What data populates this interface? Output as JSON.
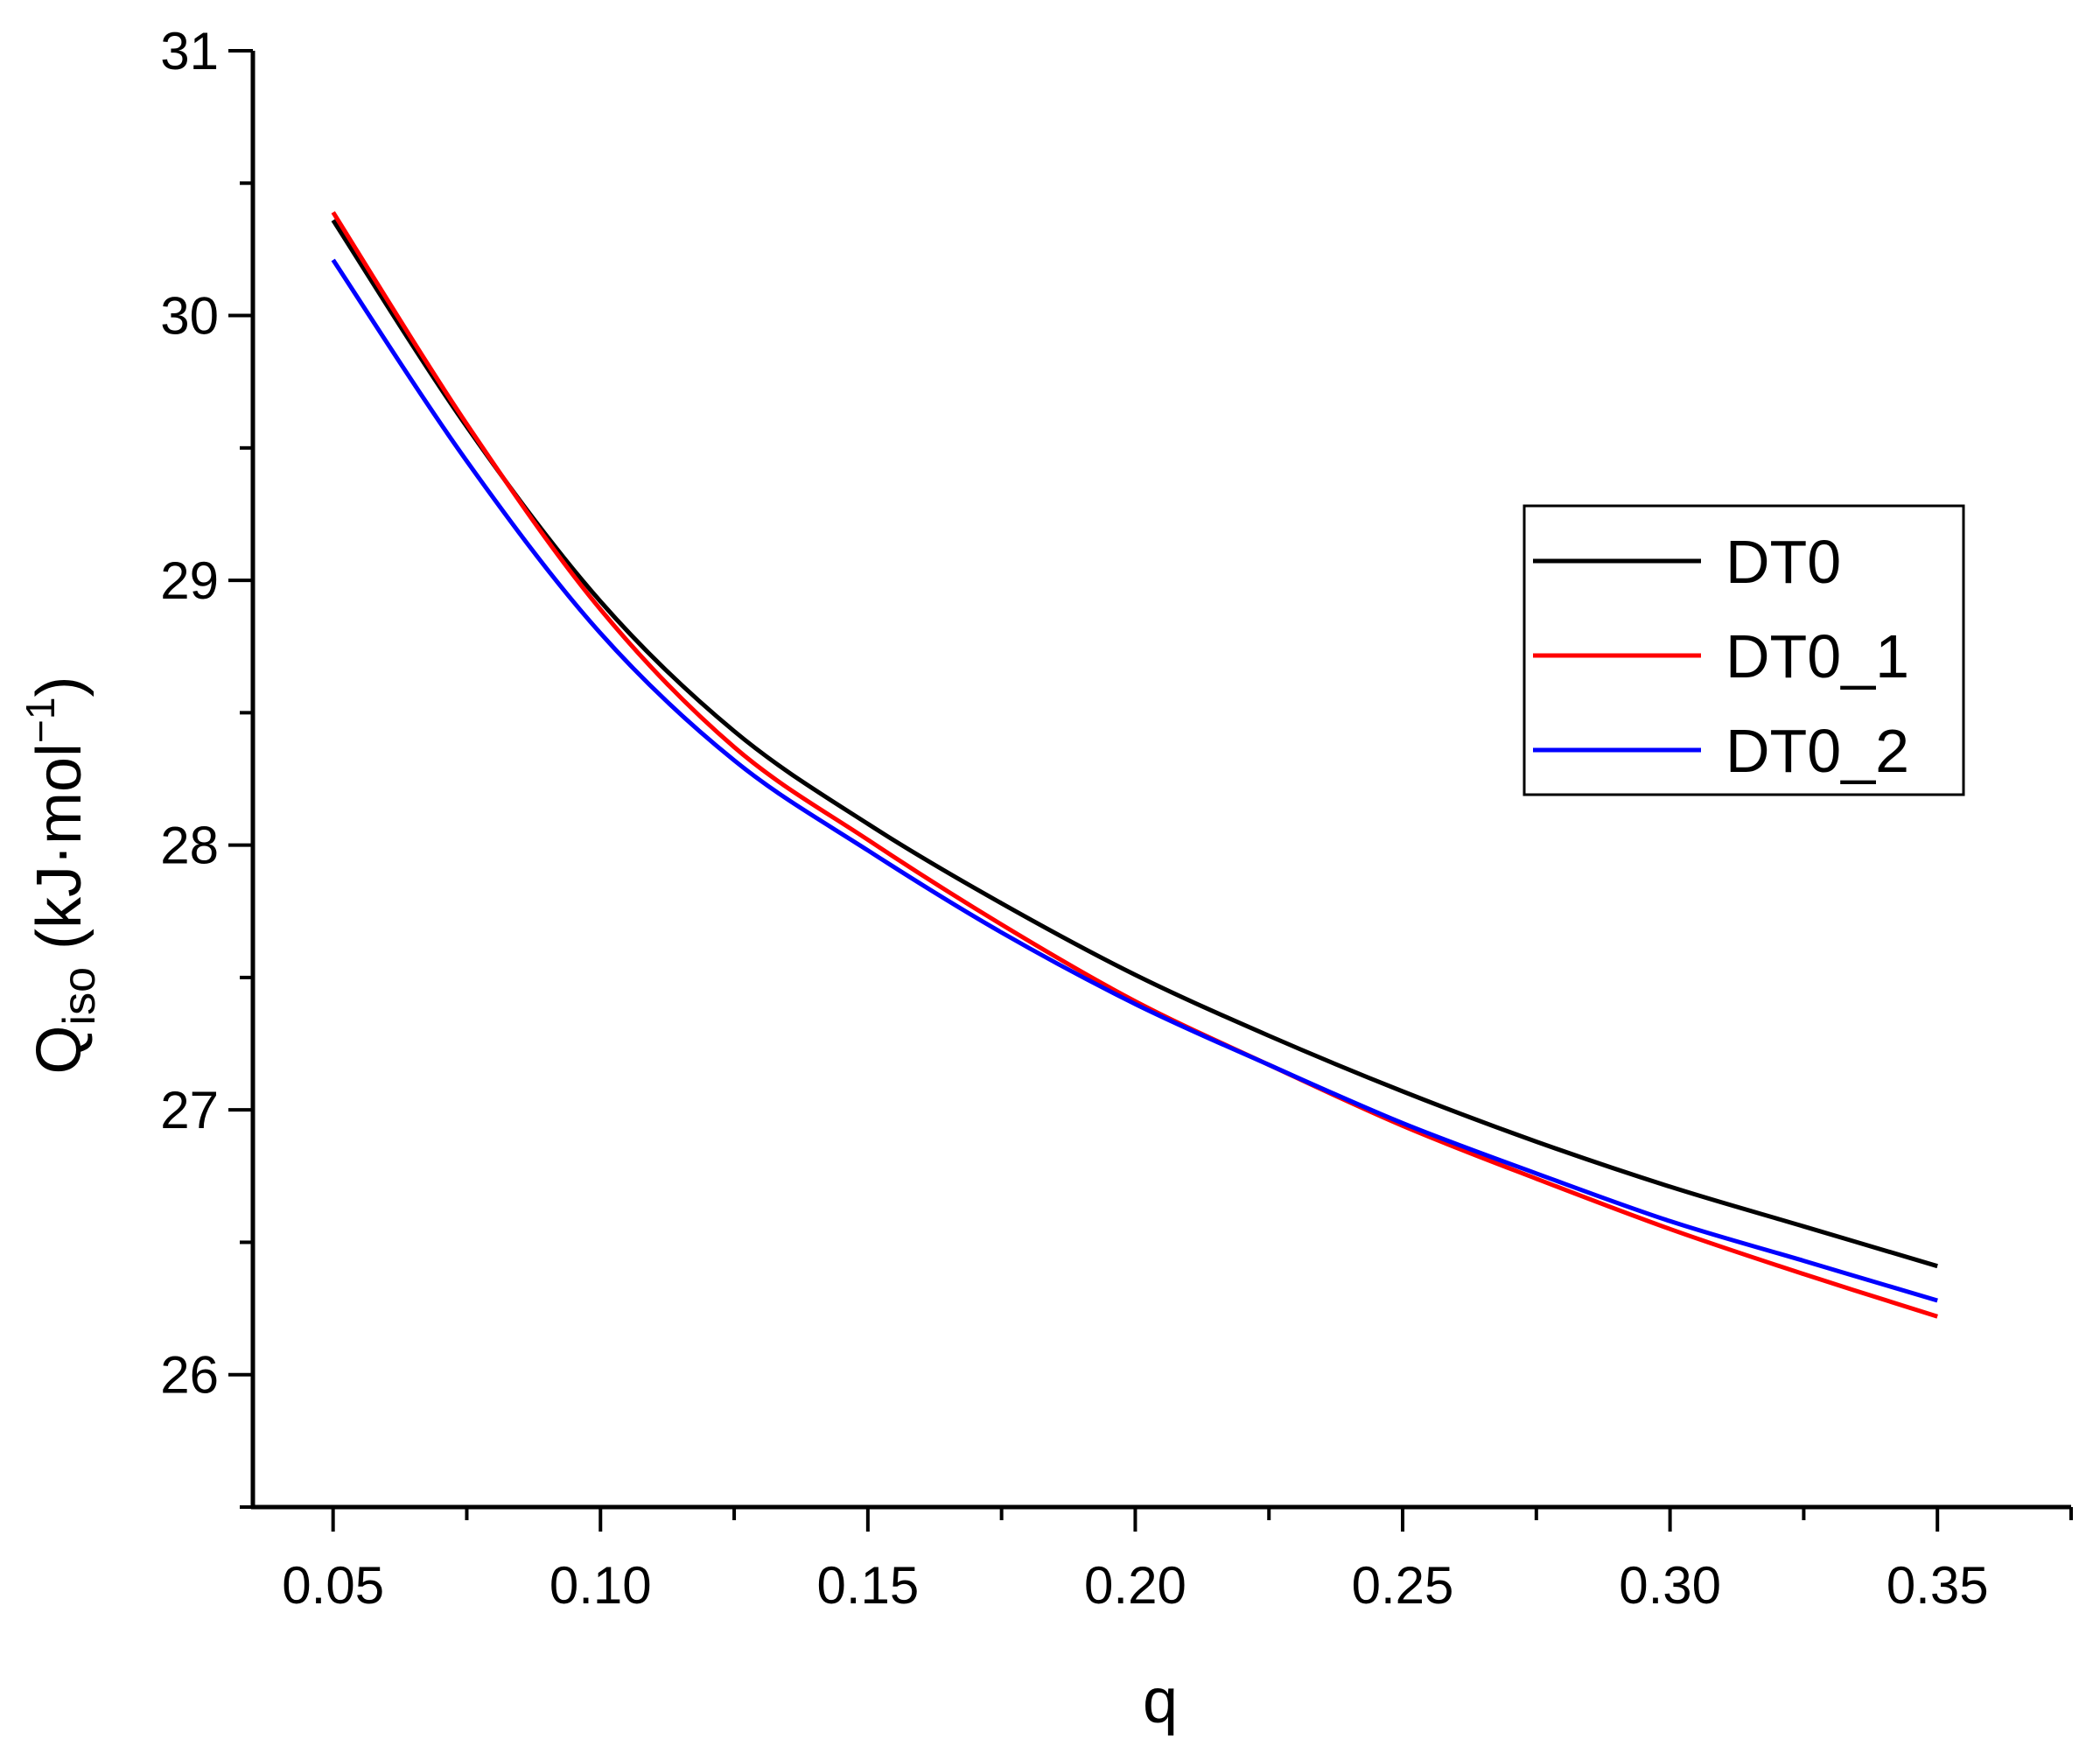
{
  "chart_data": {
    "type": "line",
    "xlabel": "q",
    "ylabel": {
      "base": "Q",
      "subscript": "iso",
      "unit_main": " (kJ·mol",
      "unit_sup": "−1",
      "unit_close": ")"
    },
    "xlim": [
      0.035,
      0.375
    ],
    "ylim": [
      25.5,
      31
    ],
    "x_ticks": [
      0.05,
      0.1,
      0.15,
      0.2,
      0.25,
      0.3,
      0.35
    ],
    "x_tick_labels": [
      "0.05",
      "0.10",
      "0.15",
      "0.20",
      "0.25",
      "0.30",
      "0.35"
    ],
    "x_minor_ticks": [
      0.075,
      0.125,
      0.175,
      0.225,
      0.275,
      0.325,
      0.375
    ],
    "y_ticks": [
      26,
      27,
      28,
      29,
      30,
      31
    ],
    "y_tick_labels": [
      "26",
      "27",
      "28",
      "29",
      "30",
      "31"
    ],
    "y_minor_ticks": [
      25.5,
      26.5,
      27.5,
      28.5,
      29.5,
      30.5
    ],
    "grid": false,
    "legend_position": "right",
    "x": [
      0.05,
      0.075,
      0.1,
      0.125,
      0.15,
      0.175,
      0.2,
      0.225,
      0.25,
      0.275,
      0.3,
      0.325,
      0.35
    ],
    "series": [
      {
        "name": "DT0",
        "color": "#000000",
        "values": [
          30.36,
          29.58,
          28.92,
          28.43,
          28.08,
          27.78,
          27.51,
          27.28,
          27.07,
          26.88,
          26.71,
          26.56,
          26.41
        ]
      },
      {
        "name": "DT0_1",
        "color": "#ff0000",
        "values": [
          30.39,
          29.59,
          28.89,
          28.37,
          28.02,
          27.7,
          27.41,
          27.17,
          26.94,
          26.74,
          26.55,
          26.38,
          26.22
        ]
      },
      {
        "name": "DT0_2",
        "color": "#0000ff",
        "values": [
          30.21,
          29.45,
          28.8,
          28.32,
          27.98,
          27.67,
          27.4,
          27.17,
          26.95,
          26.76,
          26.58,
          26.43,
          26.28
        ]
      }
    ]
  }
}
